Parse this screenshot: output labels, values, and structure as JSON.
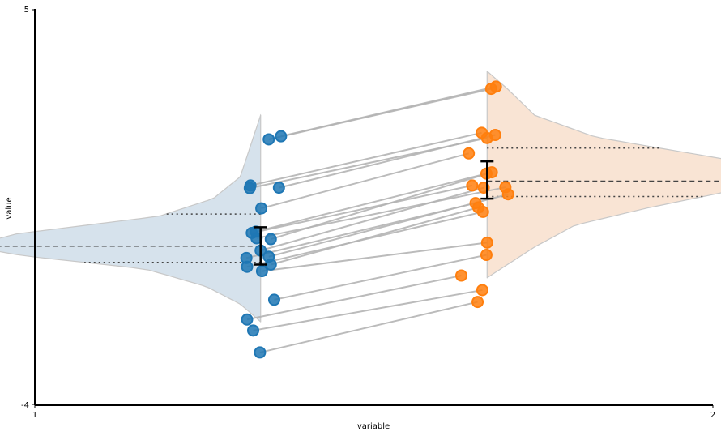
{
  "chart_data": {
    "type": "scatter",
    "subtype": "paired half-violin with raincloud points",
    "xlabel": "variable",
    "ylabel": "value",
    "xlim": [
      1,
      2
    ],
    "ylim": [
      -4,
      5
    ],
    "x_ticks": [
      "1",
      "2"
    ],
    "y_ticks": [
      "-4",
      "5"
    ],
    "grid": false,
    "colors": {
      "group1": "#1f77b4",
      "group2": "#ff7f0e",
      "violin1_fill": "#d6e2ec",
      "violin2_fill": "#f9e4d4",
      "violin_edge": "#c8c8c8",
      "pair_line": "#b4b4b4",
      "quartile_line": "#444444",
      "errorbar": "#000000"
    },
    "violins": [
      {
        "group": "group1",
        "side": "left",
        "x_pos": 1.333,
        "median": -0.38,
        "q1": -0.75,
        "q3": 0.35,
        "density_profile": [
          [
            -2.1,
            0.0
          ],
          [
            -1.7,
            0.03
          ],
          [
            -1.3,
            0.08
          ],
          [
            -0.9,
            0.17
          ],
          [
            -0.6,
            0.35
          ],
          [
            -0.38,
            0.43
          ],
          [
            -0.1,
            0.36
          ],
          [
            0.3,
            0.15
          ],
          [
            0.7,
            0.07
          ],
          [
            1.2,
            0.03
          ],
          [
            2.6,
            0.0
          ]
        ]
      },
      {
        "group": "group2",
        "side": "right",
        "x_pos": 1.667,
        "median": 1.1,
        "q1": 0.75,
        "q3": 1.85,
        "density_profile": [
          [
            -1.1,
            0.0
          ],
          [
            -0.8,
            0.03
          ],
          [
            -0.4,
            0.07
          ],
          [
            0.1,
            0.13
          ],
          [
            0.5,
            0.24
          ],
          [
            1.1,
            0.43
          ],
          [
            1.6,
            0.35
          ],
          [
            2.1,
            0.16
          ],
          [
            2.6,
            0.07
          ],
          [
            3.2,
            0.03
          ],
          [
            3.6,
            0.0
          ]
        ]
      }
    ],
    "errorbars": [
      {
        "group": "group1",
        "x": 1.333,
        "center": -0.38,
        "low": -0.8,
        "high": 0.05
      },
      {
        "group": "group2",
        "x": 1.667,
        "center": 1.1,
        "low": 0.7,
        "high": 1.55
      }
    ],
    "pairs": [
      {
        "x1": 1.345,
        "y1": 2.05,
        "x2": 1.673,
        "y2": 3.2
      },
      {
        "x1": 1.363,
        "y1": 2.12,
        "x2": 1.68,
        "y2": 3.25
      },
      {
        "x1": 1.318,
        "y1": 1.0,
        "x2": 1.659,
        "y2": 2.2
      },
      {
        "x1": 1.317,
        "y1": 0.94,
        "x2": 1.667,
        "y2": 2.08
      },
      {
        "x1": 1.36,
        "y1": 0.95,
        "x2": 1.679,
        "y2": 2.15
      },
      {
        "x1": 1.334,
        "y1": 0.48,
        "x2": 1.64,
        "y2": 1.73
      },
      {
        "x1": 1.32,
        "y1": -0.08,
        "x2": 1.645,
        "y2": 1.0
      },
      {
        "x1": 1.326,
        "y1": -0.05,
        "x2": 1.666,
        "y2": 1.27
      },
      {
        "x1": 1.348,
        "y1": -0.22,
        "x2": 1.674,
        "y2": 1.3
      },
      {
        "x1": 1.327,
        "y1": -0.2,
        "x2": 1.694,
        "y2": 0.96
      },
      {
        "x1": 1.333,
        "y1": -0.48,
        "x2": 1.662,
        "y2": 0.95
      },
      {
        "x1": 1.345,
        "y1": -0.62,
        "x2": 1.698,
        "y2": 0.8
      },
      {
        "x1": 1.312,
        "y1": -0.65,
        "x2": 1.65,
        "y2": 0.6
      },
      {
        "x1": 1.348,
        "y1": -0.8,
        "x2": 1.654,
        "y2": 0.5
      },
      {
        "x1": 1.313,
        "y1": -0.85,
        "x2": 1.661,
        "y2": 0.4
      },
      {
        "x1": 1.335,
        "y1": -0.95,
        "x2": 1.667,
        "y2": -0.3
      },
      {
        "x1": 1.353,
        "y1": -1.6,
        "x2": 1.666,
        "y2": -0.58
      },
      {
        "x1": 1.313,
        "y1": -2.05,
        "x2": 1.629,
        "y2": -1.05
      },
      {
        "x1": 1.322,
        "y1": -2.3,
        "x2": 1.66,
        "y2": -1.38
      },
      {
        "x1": 1.332,
        "y1": -2.8,
        "x2": 1.653,
        "y2": -1.65
      }
    ]
  },
  "axes": {
    "xlabel": "variable",
    "ylabel": "value",
    "x_tick_labels": [
      "1",
      "2"
    ],
    "y_tick_labels": [
      "-4",
      "5"
    ]
  }
}
